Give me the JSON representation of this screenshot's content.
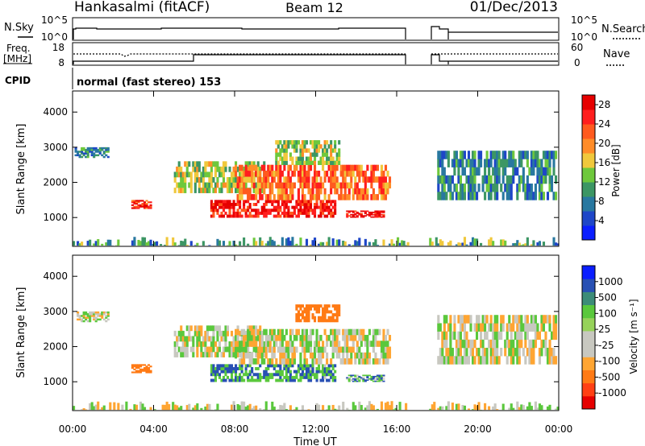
{
  "header": {
    "site": "Hankasalmi (fitACF)",
    "beam": "Beam 12",
    "date": "01/Dec/2013"
  },
  "panels": {
    "nsky_label": "N.Sky",
    "nsky_ticks": [
      "10^5",
      "10^0"
    ],
    "nsearch_label": "N.Search",
    "freq_label_1": "Freq.",
    "freq_label_2": "[MHz]",
    "freq_ticks": [
      "18",
      "8"
    ],
    "nave_label": "Nave",
    "nave_ticks": [
      "60",
      "0"
    ],
    "cpid_label": "CPID",
    "cpid_text": "normal (fast stereo) 153"
  },
  "chart_data": [
    {
      "type": "heatmap",
      "title": "",
      "xlabel": "Time UT",
      "ylabel": "Slant Range [km]",
      "xlim": [
        "00:00",
        "24:00"
      ],
      "xticks": [
        "00:00",
        "04:00",
        "08:00",
        "12:00",
        "16:00",
        "20:00",
        "00:00"
      ],
      "ylim": [
        180,
        4600
      ],
      "yticks": [
        1000,
        2000,
        3000,
        4000
      ],
      "colorbar": {
        "label": "Power [dB]",
        "range": [
          0,
          30
        ],
        "ticks": [
          4,
          8,
          12,
          16,
          20,
          24,
          28
        ],
        "colors": [
          "#0a1eff",
          "#1e46c8",
          "#2878a0",
          "#3c9664",
          "#6ec83c",
          "#f0c83c",
          "#ff8c28",
          "#ff5a1e",
          "#ff1e1e",
          "#e60000"
        ]
      },
      "data_gaps_hours": [
        [
          16.5,
          17.55
        ]
      ],
      "echo_regions": [
        {
          "t": [
            0.1,
            1.8
          ],
          "range_km": [
            2700,
            3000
          ],
          "level": 8
        },
        {
          "t": [
            2.9,
            3.9
          ],
          "range_km": [
            1250,
            1500
          ],
          "level": 25
        },
        {
          "t": [
            5.0,
            9.5
          ],
          "range_km": [
            1700,
            2600
          ],
          "level": 14
        },
        {
          "t": [
            6.8,
            13.0
          ],
          "range_km": [
            1000,
            1500
          ],
          "level": 27
        },
        {
          "t": [
            8.0,
            15.7
          ],
          "range_km": [
            1500,
            2500
          ],
          "level": 22
        },
        {
          "t": [
            13.5,
            15.4
          ],
          "range_km": [
            1000,
            1200
          ],
          "level": 28
        },
        {
          "t": [
            10.0,
            13.2
          ],
          "range_km": [
            2500,
            3200
          ],
          "level": 14
        },
        {
          "t": [
            18.0,
            23.9
          ],
          "range_km": [
            1500,
            2900
          ],
          "level": 9
        }
      ]
    },
    {
      "type": "heatmap",
      "title": "",
      "xlabel": "Time UT",
      "ylabel": "Slant Range [km]",
      "xlim": [
        "00:00",
        "24:00"
      ],
      "xticks": [
        "00:00",
        "04:00",
        "08:00",
        "12:00",
        "16:00",
        "20:00",
        "00:00"
      ],
      "ylim": [
        180,
        4600
      ],
      "yticks": [
        1000,
        2000,
        3000,
        4000
      ],
      "colorbar": {
        "label": "Velocity [m s⁻¹]",
        "range": [
          -1000,
          1000
        ],
        "ticks": [
          "1000",
          "500",
          "100",
          "25",
          "-25",
          "-100",
          "-500",
          "-1000"
        ],
        "colors": [
          "#e60000",
          "#ff4014",
          "#ff7a14",
          "#ffa532",
          "#c8c8c0",
          "#c8c8c0",
          "#96d25a",
          "#5ac83c",
          "#3c8c78",
          "#2850b4",
          "#0a1eff"
        ]
      },
      "data_gaps_hours": [
        [
          16.5,
          17.55
        ]
      ],
      "echo_regions": [
        {
          "t": [
            0.2,
            1.8
          ],
          "range_km": [
            2700,
            3000
          ],
          "velocity": 0
        },
        {
          "t": [
            2.9,
            3.9
          ],
          "range_km": [
            1250,
            1500
          ],
          "velocity": -300
        },
        {
          "t": [
            5.0,
            9.5
          ],
          "range_km": [
            1700,
            2600
          ],
          "velocity": 0
        },
        {
          "t": [
            6.8,
            13.0
          ],
          "range_km": [
            1000,
            1500
          ],
          "velocity": 100
        },
        {
          "t": [
            8.0,
            15.7
          ],
          "range_km": [
            1500,
            2500
          ],
          "velocity": 0
        },
        {
          "t": [
            13.5,
            15.4
          ],
          "range_km": [
            1000,
            1200
          ],
          "velocity": 80
        },
        {
          "t": [
            11.0,
            13.2
          ],
          "range_km": [
            2700,
            3200
          ],
          "velocity": -300
        },
        {
          "t": [
            18.0,
            23.9
          ],
          "range_km": [
            1500,
            2900
          ],
          "velocity": 0
        }
      ]
    }
  ]
}
